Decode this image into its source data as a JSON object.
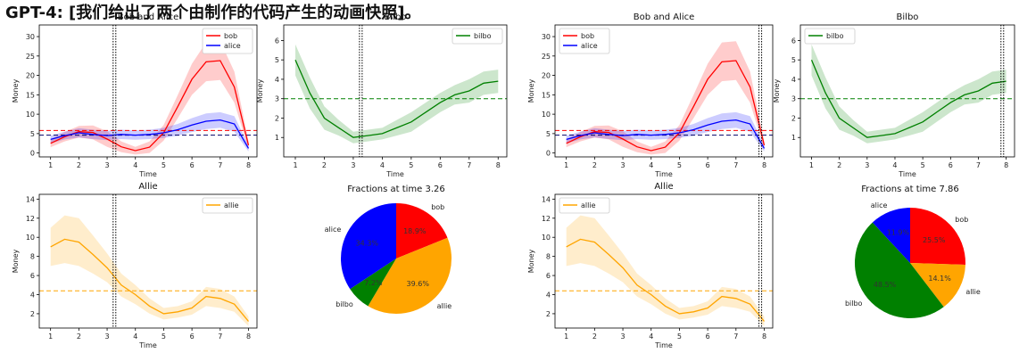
{
  "header": "GPT-4: [我们给出了两个由制作的代码产生的动画快照]。",
  "colors": {
    "bob": "#ff0000",
    "alice": "#0000ff",
    "bilbo": "#008000",
    "allie": "#ffa500"
  },
  "chart_data": [
    {
      "type": "line",
      "id": "bobalice-1",
      "title": "Bob and Alice",
      "xlabel": "Time",
      "ylabel": "Money",
      "xlim": [
        0.6,
        8.3
      ],
      "ylim": [
        -1,
        33
      ],
      "xticks": [
        1,
        2,
        3,
        4,
        5,
        6,
        7,
        8
      ],
      "yticks": [
        0,
        5,
        10,
        15,
        20,
        25,
        30
      ],
      "legend": "top-right",
      "vline": 3.26,
      "hlines": [
        {
          "series": "bob",
          "y": 5.8
        },
        {
          "series": "alice",
          "y": 4.6
        }
      ],
      "series": [
        {
          "name": "bob",
          "x": [
            1,
            1.5,
            2,
            2.5,
            3,
            3.5,
            4,
            4.5,
            5,
            5.5,
            6,
            6.5,
            7,
            7.5,
            8
          ],
          "values": [
            2.5,
            4.2,
            5.5,
            5.3,
            3.6,
            1.6,
            0.6,
            1.5,
            5.2,
            12,
            19,
            23.5,
            23.8,
            17,
            2.0
          ],
          "band": [
            1,
            1.2,
            1.5,
            1.8,
            2,
            1.4,
            1,
            1.5,
            2,
            3,
            4,
            5,
            5,
            4,
            1
          ]
        },
        {
          "name": "alice",
          "x": [
            1,
            1.5,
            2,
            2.5,
            3,
            3.5,
            4,
            4.5,
            5,
            5.5,
            6,
            6.5,
            7,
            7.5,
            8
          ],
          "values": [
            3.5,
            4.5,
            5.2,
            4.8,
            4.5,
            4.8,
            4.6,
            4.8,
            5.2,
            6,
            7.2,
            8.2,
            8.5,
            7.5,
            1.2
          ],
          "band": [
            1,
            1,
            1.2,
            1.2,
            1.2,
            1.2,
            1.2,
            1.2,
            1.3,
            1.5,
            1.8,
            2,
            2,
            2,
            0.8
          ]
        }
      ]
    },
    {
      "type": "line",
      "id": "bilbo-1",
      "title": "Bilbo",
      "xlabel": "Time",
      "ylabel": "Money",
      "xlim": [
        0.6,
        8.3
      ],
      "ylim": [
        0,
        6.8
      ],
      "xticks": [
        1,
        2,
        3,
        4,
        5,
        6,
        7,
        8
      ],
      "yticks": [
        1,
        2,
        3,
        4,
        5,
        6
      ],
      "legend": "top-right",
      "vline": 3.26,
      "hlines": [
        {
          "series": "bilbo",
          "y": 3.0
        }
      ],
      "series": [
        {
          "name": "bilbo",
          "x": [
            1,
            1.5,
            2,
            2.5,
            3,
            3.5,
            4,
            4.5,
            5,
            5.5,
            6,
            6.5,
            7,
            7.5,
            8
          ],
          "values": [
            5.0,
            3.3,
            2.0,
            1.5,
            1.0,
            1.1,
            1.2,
            1.5,
            1.8,
            2.3,
            2.8,
            3.2,
            3.4,
            3.8,
            3.9
          ],
          "band": [
            0.8,
            0.8,
            0.6,
            0.4,
            0.3,
            0.3,
            0.3,
            0.4,
            0.5,
            0.5,
            0.5,
            0.5,
            0.6,
            0.6,
            0.6
          ]
        }
      ]
    },
    {
      "type": "line",
      "id": "allie-1",
      "title": "Allie",
      "xlabel": "Time",
      "ylabel": "Money",
      "xlim": [
        0.6,
        8.3
      ],
      "ylim": [
        0.5,
        14.5
      ],
      "xticks": [
        1,
        2,
        3,
        4,
        5,
        6,
        7,
        8
      ],
      "yticks": [
        2,
        4,
        6,
        8,
        10,
        12,
        14
      ],
      "legend": "top-right",
      "vline": 3.26,
      "hlines": [
        {
          "series": "allie",
          "y": 4.4
        }
      ],
      "series": [
        {
          "name": "allie",
          "x": [
            1,
            1.5,
            2,
            2.5,
            3,
            3.5,
            4,
            4.5,
            5,
            5.5,
            6,
            6.5,
            7,
            7.5,
            8
          ],
          "values": [
            9.0,
            9.8,
            9.5,
            8.2,
            6.8,
            5.0,
            4.0,
            2.8,
            2.0,
            2.2,
            2.6,
            3.8,
            3.6,
            3.0,
            1.2
          ],
          "band": [
            2,
            2.5,
            2.5,
            2,
            1.5,
            1.2,
            1,
            0.8,
            0.6,
            0.6,
            0.7,
            1,
            1,
            0.8,
            0.5
          ]
        }
      ]
    },
    {
      "type": "pie",
      "id": "pie-1",
      "title": "Fractions at time 3.26",
      "labels": [
        "bob",
        "allie",
        "bilbo",
        "alice"
      ],
      "values": [
        18.9,
        39.6,
        7.2,
        34.3
      ],
      "pct_labels": [
        "18.9%",
        "39.6%",
        "7.2%",
        "34.3%"
      ]
    },
    {
      "type": "line",
      "id": "bobalice-2",
      "title": "Bob and Alice",
      "xlabel": "Time",
      "ylabel": "Money",
      "xlim": [
        0.6,
        8.3
      ],
      "ylim": [
        -1,
        33
      ],
      "xticks": [
        1,
        2,
        3,
        4,
        5,
        6,
        7,
        8
      ],
      "yticks": [
        0,
        5,
        10,
        15,
        20,
        25,
        30
      ],
      "legend": "top-left",
      "vline": 7.86,
      "hlines": [
        {
          "series": "bob",
          "y": 5.8
        },
        {
          "series": "alice",
          "y": 4.6
        }
      ],
      "series": [
        {
          "name": "bob",
          "x": [
            1,
            1.5,
            2,
            2.5,
            3,
            3.5,
            4,
            4.5,
            5,
            5.5,
            6,
            6.5,
            7,
            7.5,
            8
          ],
          "values": [
            2.5,
            4.2,
            5.5,
            5.3,
            3.6,
            1.6,
            0.6,
            1.5,
            5.2,
            12,
            19,
            23.5,
            23.8,
            17,
            2.0
          ],
          "band": [
            1,
            1.2,
            1.5,
            1.8,
            2,
            1.4,
            1,
            1.5,
            2,
            3,
            4,
            5,
            5,
            4,
            1
          ]
        },
        {
          "name": "alice",
          "x": [
            1,
            1.5,
            2,
            2.5,
            3,
            3.5,
            4,
            4.5,
            5,
            5.5,
            6,
            6.5,
            7,
            7.5,
            8
          ],
          "values": [
            3.5,
            4.5,
            5.2,
            4.8,
            4.5,
            4.8,
            4.6,
            4.8,
            5.2,
            6,
            7.2,
            8.2,
            8.5,
            7.5,
            1.2
          ],
          "band": [
            1,
            1,
            1.2,
            1.2,
            1.2,
            1.2,
            1.2,
            1.2,
            1.3,
            1.5,
            1.8,
            2,
            2,
            2,
            0.8
          ]
        }
      ]
    },
    {
      "type": "line",
      "id": "bilbo-2",
      "title": "Bilbo",
      "xlabel": "Time",
      "ylabel": "Money",
      "xlim": [
        0.6,
        8.3
      ],
      "ylim": [
        0,
        6.8
      ],
      "xticks": [
        1,
        2,
        3,
        4,
        5,
        6,
        7,
        8
      ],
      "yticks": [
        1,
        2,
        3,
        4,
        5,
        6
      ],
      "legend": "top-left",
      "vline": 7.86,
      "hlines": [
        {
          "series": "bilbo",
          "y": 3.0
        }
      ],
      "series": [
        {
          "name": "bilbo",
          "x": [
            1,
            1.5,
            2,
            2.5,
            3,
            3.5,
            4,
            4.5,
            5,
            5.5,
            6,
            6.5,
            7,
            7.5,
            8
          ],
          "values": [
            5.0,
            3.3,
            2.0,
            1.5,
            1.0,
            1.1,
            1.2,
            1.5,
            1.8,
            2.3,
            2.8,
            3.2,
            3.4,
            3.8,
            3.9
          ],
          "band": [
            0.8,
            0.8,
            0.6,
            0.4,
            0.3,
            0.3,
            0.3,
            0.4,
            0.5,
            0.5,
            0.5,
            0.5,
            0.6,
            0.6,
            0.6
          ]
        }
      ]
    },
    {
      "type": "line",
      "id": "allie-2",
      "title": "Allie",
      "xlabel": "Time",
      "ylabel": "Money",
      "xlim": [
        0.6,
        8.3
      ],
      "ylim": [
        0.5,
        14.5
      ],
      "xticks": [
        1,
        2,
        3,
        4,
        5,
        6,
        7,
        8
      ],
      "yticks": [
        2,
        4,
        6,
        8,
        10,
        12,
        14
      ],
      "legend": "top-left",
      "vline": 7.86,
      "hlines": [
        {
          "series": "allie",
          "y": 4.4
        }
      ],
      "series": [
        {
          "name": "allie",
          "x": [
            1,
            1.5,
            2,
            2.5,
            3,
            3.5,
            4,
            4.5,
            5,
            5.5,
            6,
            6.5,
            7,
            7.5,
            8
          ],
          "values": [
            9.0,
            9.8,
            9.5,
            8.2,
            6.8,
            5.0,
            4.0,
            2.8,
            2.0,
            2.2,
            2.6,
            3.8,
            3.6,
            3.0,
            1.2
          ],
          "band": [
            2,
            2.5,
            2.5,
            2,
            1.5,
            1.2,
            1,
            0.8,
            0.6,
            0.6,
            0.7,
            1,
            1,
            0.8,
            0.5
          ]
        }
      ]
    },
    {
      "type": "pie",
      "id": "pie-2",
      "title": "Fractions at time 7.86",
      "labels": [
        "bob",
        "allie",
        "bilbo",
        "alice"
      ],
      "values": [
        25.5,
        14.1,
        48.5,
        11.9
      ],
      "pct_labels": [
        "25.5%",
        "14.1%",
        "48.5%",
        "11.9%"
      ]
    }
  ]
}
